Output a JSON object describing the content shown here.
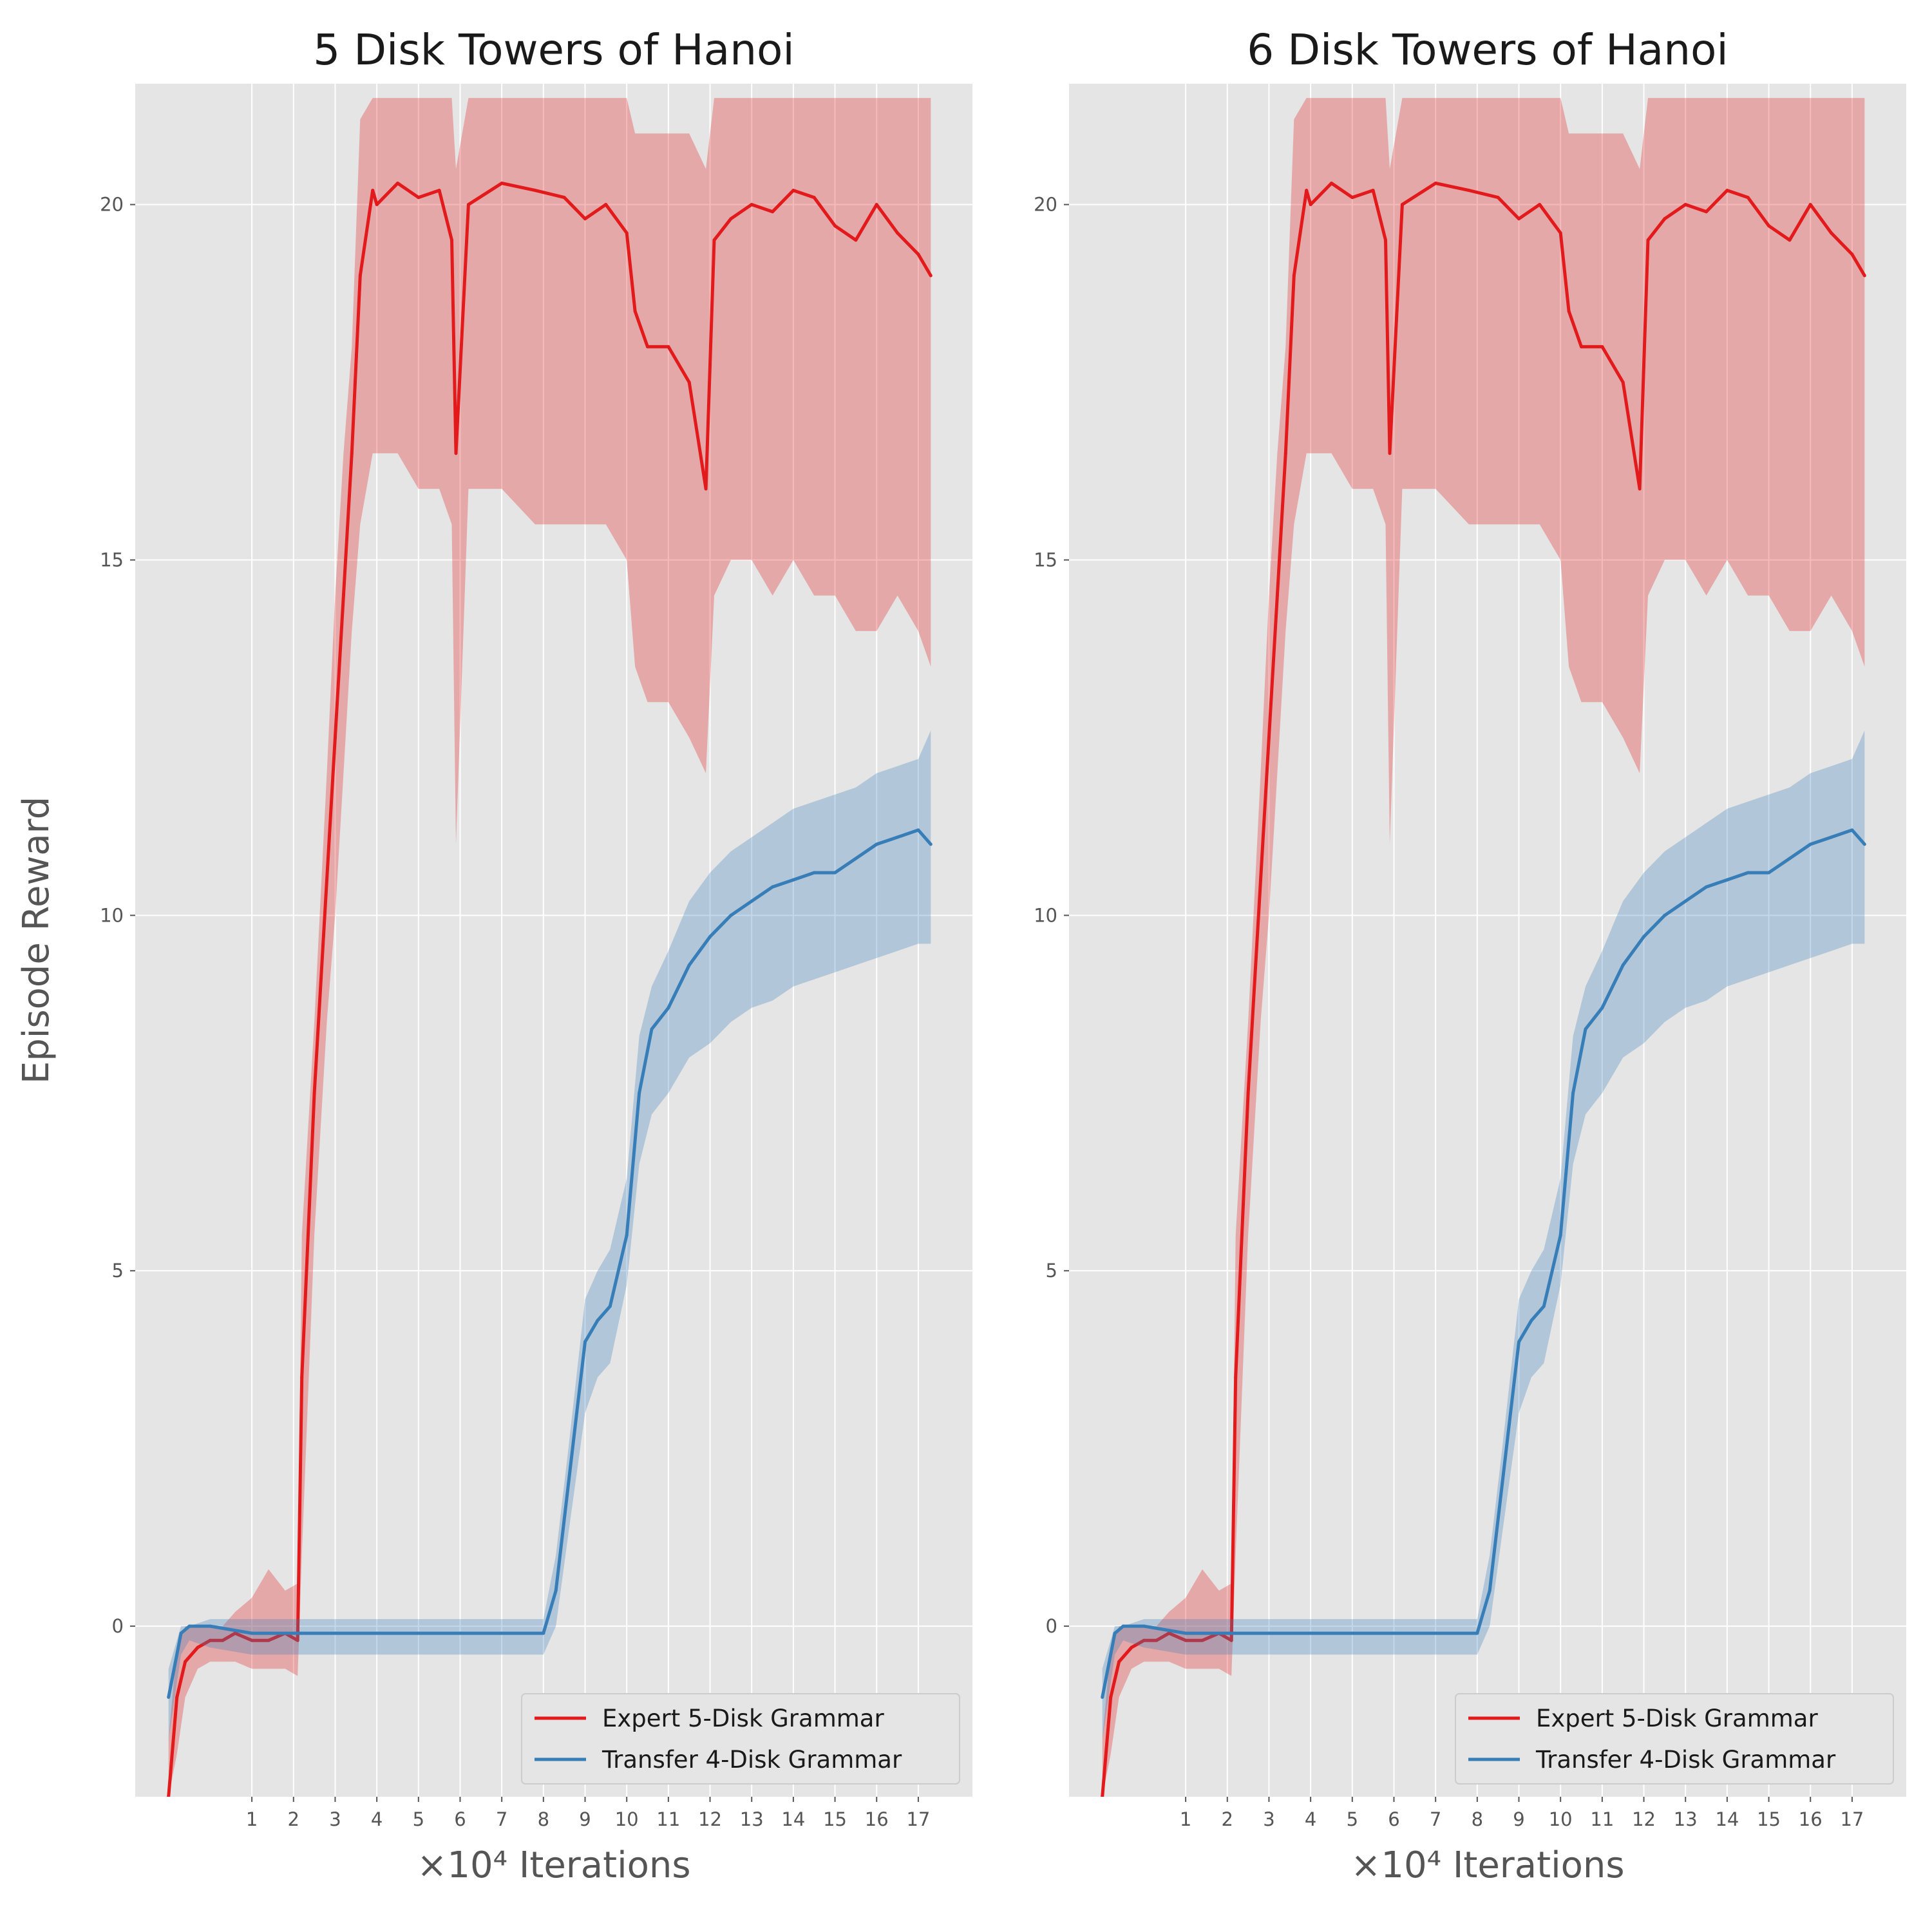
{
  "colors": {
    "expert": "#e31a1c",
    "transfer": "#377eb8",
    "panel_bg": "#e5e5e5",
    "grid": "#ffffff"
  },
  "chart_data": [
    {
      "type": "line",
      "title": "5 Disk Towers of Hanoi",
      "xlabel": "×10⁴ Iterations",
      "ylabel": "Episode Reward",
      "xlim": [
        -1.8,
        18.3
      ],
      "ylim": [
        -2.4,
        21.7
      ],
      "xticks": [
        "1",
        "2",
        "3",
        "4",
        "5",
        "6",
        "7",
        "8",
        "9",
        "10",
        "11",
        "12",
        "13",
        "14",
        "15",
        "16",
        "17"
      ],
      "yticks": [
        "0",
        "5",
        "10",
        "15",
        "20"
      ],
      "grid": true,
      "legend_position": "lower-right",
      "series": [
        {
          "name": "Expert 5-Disk Grammar",
          "color": "#e31a1c",
          "x": [
            -1.0,
            -0.8,
            -0.6,
            -0.3,
            0.0,
            0.3,
            0.6,
            1.0,
            1.4,
            1.8,
            2.1,
            2.2,
            2.5,
            2.8,
            3.0,
            3.2,
            3.4,
            3.6,
            3.9,
            4.0,
            4.5,
            5.0,
            5.5,
            5.8,
            5.9,
            6.2,
            7.0,
            7.8,
            8.5,
            9.0,
            9.5,
            10.0,
            10.2,
            10.5,
            11.0,
            11.5,
            11.9,
            12.1,
            12.5,
            13.0,
            13.5,
            14.0,
            14.5,
            15.0,
            15.5,
            16.0,
            16.5,
            17.0,
            17.3
          ],
          "y": [
            -2.4,
            -1.0,
            -0.5,
            -0.3,
            -0.2,
            -0.2,
            -0.1,
            -0.2,
            -0.2,
            -0.1,
            -0.2,
            3.5,
            7.5,
            10.5,
            12.5,
            14.5,
            16.5,
            19.0,
            20.2,
            20.0,
            20.3,
            20.1,
            20.2,
            19.5,
            16.5,
            20.0,
            20.3,
            20.2,
            20.1,
            19.8,
            20.0,
            19.6,
            18.5,
            18.0,
            18.0,
            17.5,
            16.0,
            19.5,
            19.8,
            20.0,
            19.9,
            20.2,
            20.1,
            19.7,
            19.5,
            20.0,
            19.6,
            19.3,
            19.0
          ],
          "band_upper": [
            -1.6,
            -0.3,
            0.0,
            0.0,
            0.0,
            0.0,
            0.2,
            0.4,
            0.8,
            0.5,
            0.6,
            5.5,
            8.5,
            12.0,
            14.5,
            16.5,
            18.0,
            21.2,
            21.5,
            21.5,
            21.5,
            21.5,
            21.5,
            21.5,
            20.5,
            21.5,
            21.5,
            21.5,
            21.5,
            21.5,
            21.5,
            21.5,
            21.0,
            21.0,
            21.0,
            21.0,
            20.5,
            21.5,
            21.5,
            21.5,
            21.5,
            21.5,
            21.5,
            21.5,
            21.5,
            21.5,
            21.5,
            21.5,
            21.5
          ],
          "band_lower": [
            -2.4,
            -1.8,
            -1.0,
            -0.6,
            -0.5,
            -0.5,
            -0.5,
            -0.6,
            -0.6,
            -0.6,
            -0.7,
            1.0,
            5.5,
            8.5,
            10.0,
            12.0,
            14.0,
            15.5,
            16.5,
            16.5,
            16.5,
            16.0,
            16.0,
            15.5,
            11.0,
            16.0,
            16.0,
            15.5,
            15.5,
            15.5,
            15.5,
            15.0,
            13.5,
            13.0,
            13.0,
            12.5,
            12.0,
            14.5,
            15.0,
            15.0,
            14.5,
            15.0,
            14.5,
            14.5,
            14.0,
            14.0,
            14.5,
            14.0,
            13.5
          ]
        },
        {
          "name": "Transfer 4-Disk Grammar",
          "color": "#377eb8",
          "x": [
            -1.0,
            -0.7,
            -0.5,
            0.0,
            1.0,
            2.0,
            3.0,
            4.0,
            5.0,
            6.0,
            7.0,
            8.0,
            8.3,
            8.6,
            9.0,
            9.3,
            9.6,
            10.0,
            10.3,
            10.6,
            11.0,
            11.5,
            12.0,
            12.5,
            13.0,
            13.5,
            14.0,
            14.5,
            15.0,
            15.5,
            16.0,
            16.5,
            17.0,
            17.3
          ],
          "y": [
            -1.0,
            -0.1,
            0.0,
            0.0,
            -0.1,
            -0.1,
            -0.1,
            -0.1,
            -0.1,
            -0.1,
            -0.1,
            -0.1,
            0.5,
            2.0,
            4.0,
            4.3,
            4.5,
            5.5,
            7.5,
            8.4,
            8.7,
            9.3,
            9.7,
            10.0,
            10.2,
            10.4,
            10.5,
            10.6,
            10.6,
            10.8,
            11.0,
            11.1,
            11.2,
            11.0
          ],
          "band_upper": [
            -0.6,
            0.0,
            0.0,
            0.1,
            0.1,
            0.1,
            0.1,
            0.1,
            0.1,
            0.1,
            0.1,
            0.1,
            1.0,
            2.5,
            4.6,
            5.0,
            5.3,
            6.3,
            8.3,
            9.0,
            9.5,
            10.2,
            10.6,
            10.9,
            11.1,
            11.3,
            11.5,
            11.6,
            11.7,
            11.8,
            12.0,
            12.1,
            12.2,
            12.6
          ],
          "band_lower": [
            -1.6,
            -0.4,
            -0.2,
            -0.3,
            -0.4,
            -0.4,
            -0.4,
            -0.4,
            -0.4,
            -0.4,
            -0.4,
            -0.4,
            0.0,
            1.3,
            3.0,
            3.5,
            3.7,
            4.8,
            6.5,
            7.2,
            7.5,
            8.0,
            8.2,
            8.5,
            8.7,
            8.8,
            9.0,
            9.1,
            9.2,
            9.3,
            9.4,
            9.5,
            9.6,
            9.6
          ]
        }
      ]
    },
    {
      "type": "line",
      "title": "6 Disk Towers of Hanoi",
      "xlabel": "×10⁴ Iterations",
      "ylabel": "",
      "xlim": [
        -1.8,
        18.3
      ],
      "ylim": [
        -2.4,
        21.7
      ],
      "xticks": [
        "1",
        "2",
        "3",
        "4",
        "5",
        "6",
        "7",
        "8",
        "9",
        "10",
        "11",
        "12",
        "13",
        "14",
        "15",
        "16",
        "17"
      ],
      "yticks": [
        "0",
        "5",
        "10",
        "15",
        "20"
      ],
      "grid": true,
      "legend_position": "lower-right",
      "series": [
        {
          "name": "Expert 5-Disk Grammar",
          "color": "#e31a1c",
          "x": [
            -1.0,
            -0.8,
            -0.6,
            -0.3,
            0.0,
            0.3,
            0.6,
            1.0,
            1.4,
            1.8,
            2.1,
            2.2,
            2.5,
            2.8,
            3.0,
            3.2,
            3.4,
            3.6,
            3.9,
            4.0,
            4.5,
            5.0,
            5.5,
            5.8,
            5.9,
            6.2,
            7.0,
            7.8,
            8.5,
            9.0,
            9.5,
            10.0,
            10.2,
            10.5,
            11.0,
            11.5,
            11.9,
            12.1,
            12.5,
            13.0,
            13.5,
            14.0,
            14.5,
            15.0,
            15.5,
            16.0,
            16.5,
            17.0,
            17.3
          ],
          "y": [
            -2.4,
            -1.0,
            -0.5,
            -0.3,
            -0.2,
            -0.2,
            -0.1,
            -0.2,
            -0.2,
            -0.1,
            -0.2,
            3.5,
            7.5,
            10.5,
            12.5,
            14.5,
            16.5,
            19.0,
            20.2,
            20.0,
            20.3,
            20.1,
            20.2,
            19.5,
            16.5,
            20.0,
            20.3,
            20.2,
            20.1,
            19.8,
            20.0,
            19.6,
            18.5,
            18.0,
            18.0,
            17.5,
            16.0,
            19.5,
            19.8,
            20.0,
            19.9,
            20.2,
            20.1,
            19.7,
            19.5,
            20.0,
            19.6,
            19.3,
            19.0
          ],
          "band_upper": [
            -1.6,
            -0.3,
            0.0,
            0.0,
            0.0,
            0.0,
            0.2,
            0.4,
            0.8,
            0.5,
            0.6,
            5.5,
            8.5,
            12.0,
            14.5,
            16.5,
            18.0,
            21.2,
            21.5,
            21.5,
            21.5,
            21.5,
            21.5,
            21.5,
            20.5,
            21.5,
            21.5,
            21.5,
            21.5,
            21.5,
            21.5,
            21.5,
            21.0,
            21.0,
            21.0,
            21.0,
            20.5,
            21.5,
            21.5,
            21.5,
            21.5,
            21.5,
            21.5,
            21.5,
            21.5,
            21.5,
            21.5,
            21.5,
            21.5
          ],
          "band_lower": [
            -2.4,
            -1.8,
            -1.0,
            -0.6,
            -0.5,
            -0.5,
            -0.5,
            -0.6,
            -0.6,
            -0.6,
            -0.7,
            1.0,
            5.5,
            8.5,
            10.0,
            12.0,
            14.0,
            15.5,
            16.5,
            16.5,
            16.5,
            16.0,
            16.0,
            15.5,
            11.0,
            16.0,
            16.0,
            15.5,
            15.5,
            15.5,
            15.5,
            15.0,
            13.5,
            13.0,
            13.0,
            12.5,
            12.0,
            14.5,
            15.0,
            15.0,
            14.5,
            15.0,
            14.5,
            14.5,
            14.0,
            14.0,
            14.5,
            14.0,
            13.5
          ]
        },
        {
          "name": "Transfer 4-Disk Grammar",
          "color": "#377eb8",
          "x": [
            -1.0,
            -0.7,
            -0.5,
            0.0,
            1.0,
            2.0,
            3.0,
            4.0,
            5.0,
            6.0,
            7.0,
            8.0,
            8.3,
            8.6,
            9.0,
            9.3,
            9.6,
            10.0,
            10.3,
            10.6,
            11.0,
            11.5,
            12.0,
            12.5,
            13.0,
            13.5,
            14.0,
            14.5,
            15.0,
            15.5,
            16.0,
            16.5,
            17.0,
            17.3
          ],
          "y": [
            -1.0,
            -0.1,
            0.0,
            0.0,
            -0.1,
            -0.1,
            -0.1,
            -0.1,
            -0.1,
            -0.1,
            -0.1,
            -0.1,
            0.5,
            2.0,
            4.0,
            4.3,
            4.5,
            5.5,
            7.5,
            8.4,
            8.7,
            9.3,
            9.7,
            10.0,
            10.2,
            10.4,
            10.5,
            10.6,
            10.6,
            10.8,
            11.0,
            11.1,
            11.2,
            11.0
          ],
          "band_upper": [
            -0.6,
            0.0,
            0.0,
            0.1,
            0.1,
            0.1,
            0.1,
            0.1,
            0.1,
            0.1,
            0.1,
            0.1,
            1.0,
            2.5,
            4.6,
            5.0,
            5.3,
            6.3,
            8.3,
            9.0,
            9.5,
            10.2,
            10.6,
            10.9,
            11.1,
            11.3,
            11.5,
            11.6,
            11.7,
            11.8,
            12.0,
            12.1,
            12.2,
            12.6
          ],
          "band_lower": [
            -1.6,
            -0.4,
            -0.2,
            -0.3,
            -0.4,
            -0.4,
            -0.4,
            -0.4,
            -0.4,
            -0.4,
            -0.4,
            -0.4,
            0.0,
            1.3,
            3.0,
            3.5,
            3.7,
            4.8,
            6.5,
            7.2,
            7.5,
            8.0,
            8.2,
            8.5,
            8.7,
            8.8,
            9.0,
            9.1,
            9.2,
            9.3,
            9.4,
            9.5,
            9.6,
            9.6
          ]
        }
      ]
    }
  ]
}
